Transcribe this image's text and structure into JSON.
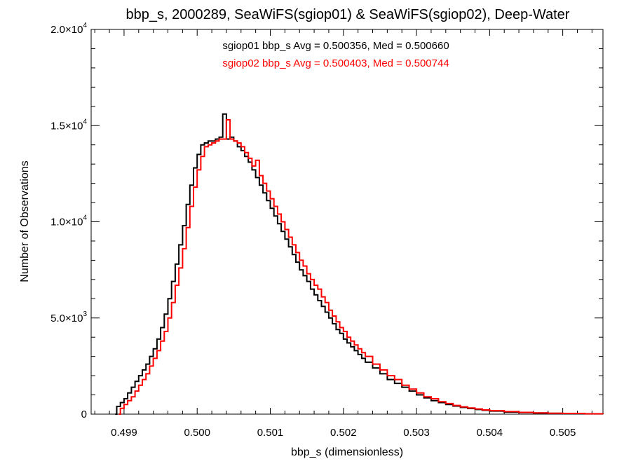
{
  "chart_data": {
    "type": "line",
    "step": true,
    "title": "bbp_s, 2000289, SeaWiFS(sgiop01) & SeaWiFS(sgiop02), Deep-Water",
    "xlabel": "bbp_s (dimensionless)",
    "ylabel": "Number of Observations",
    "xlim": [
      0.49855,
      0.50555
    ],
    "ylim": [
      0,
      20000
    ],
    "xticks": [
      0.499,
      0.5,
      0.501,
      0.502,
      0.503,
      0.504,
      0.505
    ],
    "xtick_labels": [
      "0.499",
      "0.500",
      "0.501",
      "0.502",
      "0.503",
      "0.504",
      "0.505"
    ],
    "yticks": [
      0,
      5000,
      10000,
      15000,
      20000
    ],
    "ytick_labels": [
      {
        "mantissa": "0",
        "exp": ""
      },
      {
        "mantissa": "5.0×10",
        "exp": "3"
      },
      {
        "mantissa": "1.0×10",
        "exp": "4"
      },
      {
        "mantissa": "1.5×10",
        "exp": "4"
      },
      {
        "mantissa": "2.0×10",
        "exp": "4"
      }
    ],
    "annotations": [
      {
        "text": "sgiop01 bbp_s Avg = 0.500356, Med = 0.500660",
        "color": "#000000"
      },
      {
        "text": "sgiop02 bbp_s Avg = 0.500403, Med = 0.500744",
        "color": "#ff0000"
      }
    ],
    "series": [
      {
        "color": "#000000",
        "points": [
          [
            0.49888,
            0
          ],
          [
            0.4989,
            400
          ],
          [
            0.49895,
            600
          ],
          [
            0.499,
            800
          ],
          [
            0.49905,
            1100
          ],
          [
            0.4991,
            1400
          ],
          [
            0.49915,
            1700
          ],
          [
            0.4992,
            2000
          ],
          [
            0.49925,
            2300
          ],
          [
            0.4993,
            2600
          ],
          [
            0.49935,
            3000
          ],
          [
            0.4994,
            3400
          ],
          [
            0.49945,
            3900
          ],
          [
            0.4995,
            4500
          ],
          [
            0.49955,
            5200
          ],
          [
            0.4996,
            6000
          ],
          [
            0.49965,
            6900
          ],
          [
            0.4997,
            7800
          ],
          [
            0.49975,
            8800
          ],
          [
            0.4998,
            9800
          ],
          [
            0.49985,
            10900
          ],
          [
            0.4999,
            11900
          ],
          [
            0.49995,
            12800
          ],
          [
            0.5,
            13500
          ],
          [
            0.50005,
            14000
          ],
          [
            0.5001,
            14100
          ],
          [
            0.50015,
            14200
          ],
          [
            0.5002,
            14200
          ],
          [
            0.50025,
            14300
          ],
          [
            0.5003,
            14400
          ],
          [
            0.50035,
            15600
          ],
          [
            0.5004,
            14300
          ],
          [
            0.50045,
            14400
          ],
          [
            0.5005,
            14200
          ],
          [
            0.50055,
            13900
          ],
          [
            0.5006,
            13700
          ],
          [
            0.50065,
            13400
          ],
          [
            0.5007,
            13100
          ],
          [
            0.50075,
            12700
          ],
          [
            0.5008,
            12300
          ],
          [
            0.50085,
            11900
          ],
          [
            0.5009,
            11500
          ],
          [
            0.50095,
            11100
          ],
          [
            0.501,
            10700
          ],
          [
            0.50105,
            10300
          ],
          [
            0.5011,
            9900
          ],
          [
            0.50115,
            9500
          ],
          [
            0.5012,
            9100
          ],
          [
            0.50125,
            8700
          ],
          [
            0.5013,
            8300
          ],
          [
            0.50135,
            7900
          ],
          [
            0.5014,
            7500
          ],
          [
            0.50145,
            7200
          ],
          [
            0.5015,
            6900
          ],
          [
            0.50155,
            6500
          ],
          [
            0.5016,
            6200
          ],
          [
            0.50165,
            5900
          ],
          [
            0.5017,
            5600
          ],
          [
            0.50175,
            5300
          ],
          [
            0.5018,
            5000
          ],
          [
            0.50185,
            4700
          ],
          [
            0.5019,
            4400
          ],
          [
            0.50195,
            4200
          ],
          [
            0.502,
            3900
          ],
          [
            0.50205,
            3700
          ],
          [
            0.5021,
            3500
          ],
          [
            0.50215,
            3300
          ],
          [
            0.5022,
            3100
          ],
          [
            0.50225,
            2900
          ],
          [
            0.5023,
            2700
          ],
          [
            0.5024,
            2400
          ],
          [
            0.5025,
            2100
          ],
          [
            0.5026,
            1800
          ],
          [
            0.5027,
            1600
          ],
          [
            0.5028,
            1400
          ],
          [
            0.5029,
            1200
          ],
          [
            0.503,
            1000
          ],
          [
            0.5031,
            850
          ],
          [
            0.5032,
            700
          ],
          [
            0.5033,
            600
          ],
          [
            0.5034,
            500
          ],
          [
            0.5035,
            420
          ],
          [
            0.5036,
            350
          ],
          [
            0.5037,
            290
          ],
          [
            0.5038,
            240
          ],
          [
            0.5039,
            200
          ],
          [
            0.504,
            160
          ],
          [
            0.5042,
            110
          ],
          [
            0.5044,
            80
          ],
          [
            0.5046,
            60
          ],
          [
            0.5048,
            40
          ],
          [
            0.505,
            30
          ],
          [
            0.5053,
            15
          ],
          [
            0.50555,
            5
          ]
        ]
      },
      {
        "color": "#ff0000",
        "points": [
          [
            0.49893,
            0
          ],
          [
            0.49895,
            300
          ],
          [
            0.499,
            500
          ],
          [
            0.49905,
            700
          ],
          [
            0.4991,
            900
          ],
          [
            0.49915,
            1200
          ],
          [
            0.4992,
            1500
          ],
          [
            0.49925,
            1800
          ],
          [
            0.4993,
            2100
          ],
          [
            0.49935,
            2500
          ],
          [
            0.4994,
            2900
          ],
          [
            0.49945,
            3300
          ],
          [
            0.4995,
            3800
          ],
          [
            0.49955,
            4300
          ],
          [
            0.4996,
            5000
          ],
          [
            0.49965,
            5800
          ],
          [
            0.4997,
            6700
          ],
          [
            0.49975,
            7600
          ],
          [
            0.4998,
            8600
          ],
          [
            0.49985,
            9700
          ],
          [
            0.4999,
            10800
          ],
          [
            0.49995,
            11800
          ],
          [
            0.5,
            12700
          ],
          [
            0.50005,
            13400
          ],
          [
            0.5001,
            13900
          ],
          [
            0.50015,
            14000
          ],
          [
            0.5002,
            14100
          ],
          [
            0.50025,
            14200
          ],
          [
            0.5003,
            14300
          ],
          [
            0.50035,
            14300
          ],
          [
            0.5004,
            15300
          ],
          [
            0.50045,
            14300
          ],
          [
            0.5005,
            14200
          ],
          [
            0.50055,
            14100
          ],
          [
            0.5006,
            13900
          ],
          [
            0.50065,
            13600
          ],
          [
            0.5007,
            13300
          ],
          [
            0.50075,
            12900
          ],
          [
            0.5008,
            13200
          ],
          [
            0.50085,
            12400
          ],
          [
            0.5009,
            12000
          ],
          [
            0.50095,
            11600
          ],
          [
            0.501,
            11200
          ],
          [
            0.50105,
            10800
          ],
          [
            0.5011,
            10400
          ],
          [
            0.50115,
            10000
          ],
          [
            0.5012,
            9600
          ],
          [
            0.50125,
            9200
          ],
          [
            0.5013,
            8800
          ],
          [
            0.50135,
            8400
          ],
          [
            0.5014,
            8000
          ],
          [
            0.50145,
            7700
          ],
          [
            0.5015,
            7300
          ],
          [
            0.50155,
            7000
          ],
          [
            0.5016,
            6700
          ],
          [
            0.50165,
            6500
          ],
          [
            0.5017,
            6100
          ],
          [
            0.50175,
            5800
          ],
          [
            0.5018,
            5400
          ],
          [
            0.50185,
            5100
          ],
          [
            0.5019,
            4800
          ],
          [
            0.50195,
            4500
          ],
          [
            0.502,
            4300
          ],
          [
            0.50205,
            4000
          ],
          [
            0.5021,
            3800
          ],
          [
            0.50215,
            3600
          ],
          [
            0.5022,
            3400
          ],
          [
            0.50225,
            3200
          ],
          [
            0.5023,
            3000
          ],
          [
            0.5024,
            2600
          ],
          [
            0.5025,
            2300
          ],
          [
            0.5026,
            2000
          ],
          [
            0.5027,
            1800
          ],
          [
            0.5028,
            1500
          ],
          [
            0.5029,
            1300
          ],
          [
            0.503,
            1100
          ],
          [
            0.5031,
            900
          ],
          [
            0.5032,
            800
          ],
          [
            0.5033,
            650
          ],
          [
            0.5034,
            550
          ],
          [
            0.5035,
            450
          ],
          [
            0.5036,
            380
          ],
          [
            0.5037,
            320
          ],
          [
            0.5038,
            270
          ],
          [
            0.5039,
            220
          ],
          [
            0.504,
            180
          ],
          [
            0.5042,
            130
          ],
          [
            0.5044,
            90
          ],
          [
            0.5046,
            65
          ],
          [
            0.5048,
            45
          ],
          [
            0.505,
            35
          ],
          [
            0.5053,
            20
          ],
          [
            0.50555,
            8
          ]
        ]
      }
    ]
  }
}
